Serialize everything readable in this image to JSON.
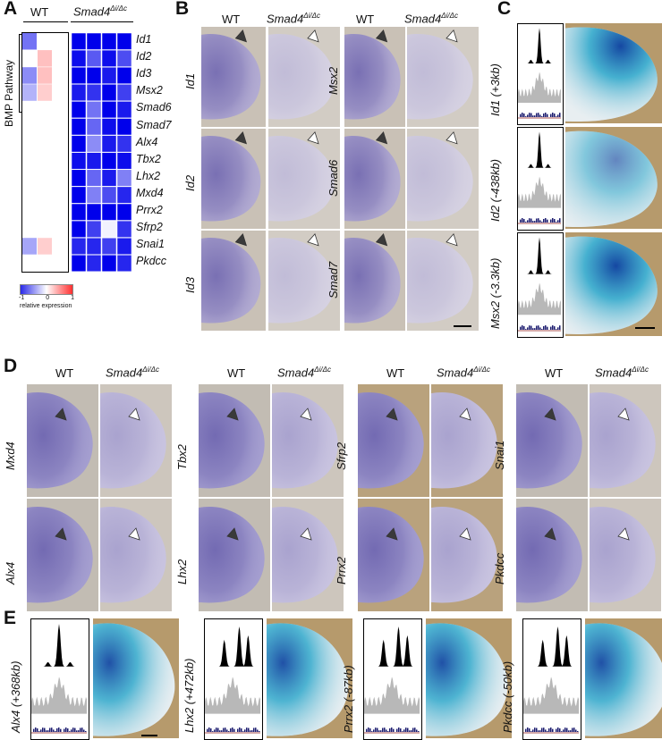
{
  "panels": {
    "A": "A",
    "B": "B",
    "C": "C",
    "D": "D",
    "E": "E"
  },
  "panelA": {
    "wt": "WT",
    "mut_prefix": "Smad4",
    "mut_sup": "Δi/Δc",
    "pathway": "BMP Pathway",
    "genes": [
      "Id1",
      "Id2",
      "Id3",
      "Msx2",
      "Smad6",
      "Smad7",
      "Alx4",
      "Tbx2",
      "Lhx2",
      "Mxd4",
      "Prrx2",
      "Sfrp2",
      "Snai1",
      "Pkdcc"
    ],
    "legend_ticks": [
      "-1",
      "0",
      "1"
    ],
    "legend_label": "relative expression",
    "heatmap_wt": [
      [
        -0.55,
        0,
        0
      ],
      [
        0,
        0.45,
        0
      ],
      [
        -0.45,
        0.45,
        0
      ],
      [
        -0.3,
        0.35,
        0
      ],
      [
        0,
        0,
        0
      ],
      [
        0,
        0,
        0
      ],
      [
        0,
        0,
        0
      ],
      [
        0,
        0,
        0
      ],
      [
        0,
        0,
        0
      ],
      [
        0,
        0,
        0
      ],
      [
        0,
        0,
        0
      ],
      [
        0,
        0,
        0
      ],
      [
        -0.35,
        0.35,
        0
      ],
      [
        0,
        0,
        0
      ]
    ],
    "heatmap_mut": [
      [
        -1,
        -1,
        -1,
        -1
      ],
      [
        -0.95,
        -0.65,
        -0.95,
        -0.7
      ],
      [
        -1,
        -1,
        -0.9,
        -1
      ],
      [
        -0.9,
        -0.8,
        -1,
        -0.75
      ],
      [
        -1,
        -0.55,
        -1,
        -0.9
      ],
      [
        -1,
        -0.6,
        -0.95,
        -1
      ],
      [
        -1,
        -0.45,
        -0.9,
        -0.8
      ],
      [
        -0.95,
        -0.9,
        -1,
        -0.95
      ],
      [
        -1,
        -0.6,
        -0.9,
        -0.5
      ],
      [
        -1,
        -0.5,
        -0.7,
        -0.85
      ],
      [
        -1,
        -1,
        -1,
        -1
      ],
      [
        -1,
        -0.75,
        -0.05,
        -0.8
      ],
      [
        -0.85,
        -0.85,
        -0.75,
        -0.9
      ],
      [
        -1,
        -0.85,
        -1,
        -0.85
      ]
    ]
  },
  "panelB": {
    "wt": "WT",
    "mut_prefix": "Smad4",
    "mut_sup": "Δi/Δc",
    "left_genes": [
      "Id1",
      "Id2",
      "Id3"
    ],
    "right_genes": [
      "Msx2",
      "Smad6",
      "Smad7"
    ]
  },
  "panelC": {
    "labels": [
      "Id1 (+3kb)",
      "Id2 (-438kb)",
      "Msx2 (-3.3kb)"
    ]
  },
  "panelD": {
    "wt": "WT",
    "mut_prefix": "Smad4",
    "mut_sup": "Δi/Δc",
    "groups": [
      {
        "top": "Mxd4",
        "bottom": "Alx4"
      },
      {
        "top": "Tbx2",
        "bottom": "Lhx2"
      },
      {
        "top": "Sfrp2",
        "bottom": "Prrx2"
      },
      {
        "top": "Snai1",
        "bottom": "Pkdcc"
      }
    ]
  },
  "panelE": {
    "labels": [
      "Alx4 (+368kb)",
      "Lhx2 (+472kb)",
      "Prrx2 (-87kb)",
      "Pkdcc (-50kb)"
    ]
  },
  "colors": {
    "blue_max": "#0000dd",
    "red_max": "#ff8f8f",
    "stain": "#4a3f9a"
  }
}
